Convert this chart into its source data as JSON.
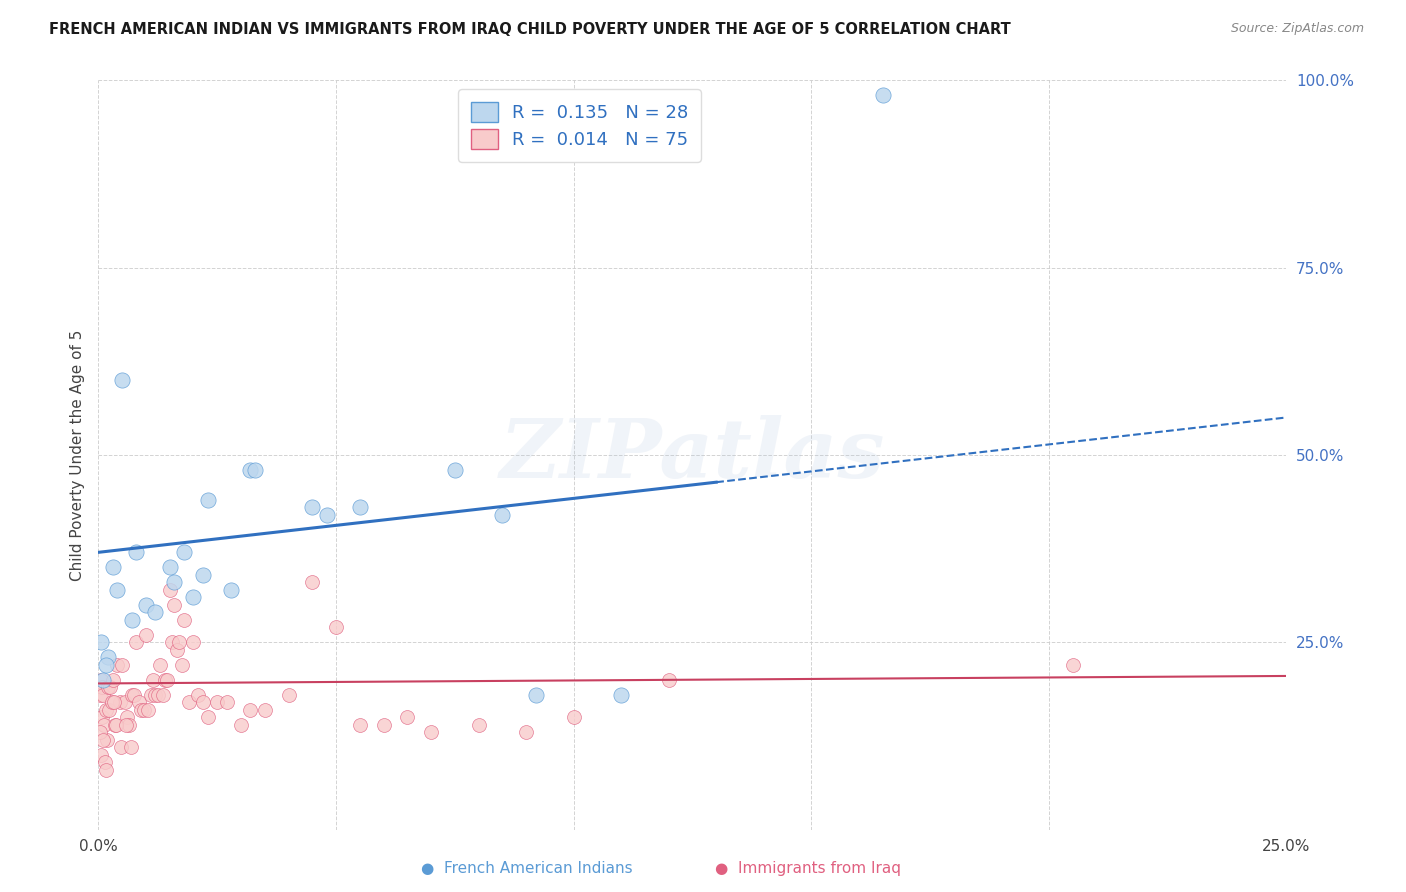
{
  "title": "FRENCH AMERICAN INDIAN VS IMMIGRANTS FROM IRAQ CHILD POVERTY UNDER THE AGE OF 5 CORRELATION CHART",
  "source": "Source: ZipAtlas.com",
  "ylabel": "Child Poverty Under the Age of 5",
  "R1": "0.135",
  "N1": "28",
  "R2": "0.014",
  "N2": "75",
  "legend1_label": "French American Indians",
  "legend2_label": "Immigrants from Iraq",
  "blue_fill": "#BDD7EE",
  "blue_edge": "#5B9BD5",
  "pink_fill": "#F8CBCB",
  "pink_edge": "#E06080",
  "blue_line": "#3070C0",
  "pink_line": "#C84060",
  "grid_color": "#cccccc",
  "tick_color_y": "#4472C4",
  "tick_color_x": "#444444",
  "watermark": "ZIPatlas",
  "xlim": [
    0,
    25
  ],
  "ylim": [
    0,
    100
  ],
  "blue_x": [
    0.2,
    0.4,
    0.5,
    0.7,
    0.8,
    1.0,
    1.2,
    1.5,
    1.6,
    1.8,
    2.0,
    2.2,
    2.3,
    2.8,
    3.2,
    3.3,
    4.5,
    4.8,
    5.5,
    7.5,
    8.5,
    9.2,
    11.0,
    16.5,
    0.1,
    0.15,
    0.05,
    0.3
  ],
  "blue_y": [
    23,
    32,
    60,
    28,
    37,
    30,
    29,
    35,
    33,
    37,
    31,
    34,
    44,
    32,
    48,
    48,
    43,
    42,
    43,
    48,
    42,
    18,
    18,
    98,
    20,
    22,
    25,
    35
  ],
  "pink_x": [
    0.03,
    0.05,
    0.07,
    0.08,
    0.1,
    0.12,
    0.15,
    0.18,
    0.2,
    0.22,
    0.25,
    0.3,
    0.35,
    0.4,
    0.45,
    0.5,
    0.55,
    0.6,
    0.65,
    0.7,
    0.75,
    0.8,
    0.85,
    0.9,
    0.95,
    1.0,
    1.05,
    1.1,
    1.15,
    1.2,
    1.25,
    1.3,
    1.35,
    1.4,
    1.45,
    1.5,
    1.55,
    1.6,
    1.65,
    1.7,
    1.75,
    1.8,
    1.9,
    2.0,
    2.1,
    2.2,
    2.3,
    2.5,
    2.7,
    3.0,
    3.2,
    3.5,
    4.0,
    4.5,
    5.0,
    5.5,
    6.0,
    6.5,
    7.0,
    8.0,
    9.0,
    10.0,
    12.0,
    0.03,
    0.06,
    0.09,
    0.13,
    0.16,
    0.28,
    0.38,
    0.48,
    0.58,
    0.68,
    20.5,
    0.32
  ],
  "pink_y": [
    18,
    20,
    19,
    15,
    18,
    14,
    16,
    12,
    19,
    16,
    19,
    20,
    14,
    22,
    17,
    22,
    17,
    15,
    14,
    18,
    18,
    25,
    17,
    16,
    16,
    26,
    16,
    18,
    20,
    18,
    18,
    22,
    18,
    20,
    20,
    32,
    25,
    30,
    24,
    25,
    22,
    28,
    17,
    25,
    18,
    17,
    15,
    17,
    17,
    14,
    16,
    16,
    18,
    33,
    27,
    14,
    14,
    15,
    13,
    14,
    13,
    15,
    20,
    13,
    10,
    12,
    9,
    8,
    17,
    14,
    11,
    14,
    11,
    22,
    17
  ],
  "blue_line_x0": 0,
  "blue_line_y0": 37,
  "blue_line_x1": 25,
  "blue_line_y1": 55,
  "blue_solid_end_x": 13,
  "pink_line_x0": 0,
  "pink_line_y0": 19.5,
  "pink_line_x1": 25,
  "pink_line_y1": 20.5,
  "title_fontsize": 10.5,
  "source_fontsize": 9,
  "label_fontsize": 11,
  "legend_fontsize": 13
}
